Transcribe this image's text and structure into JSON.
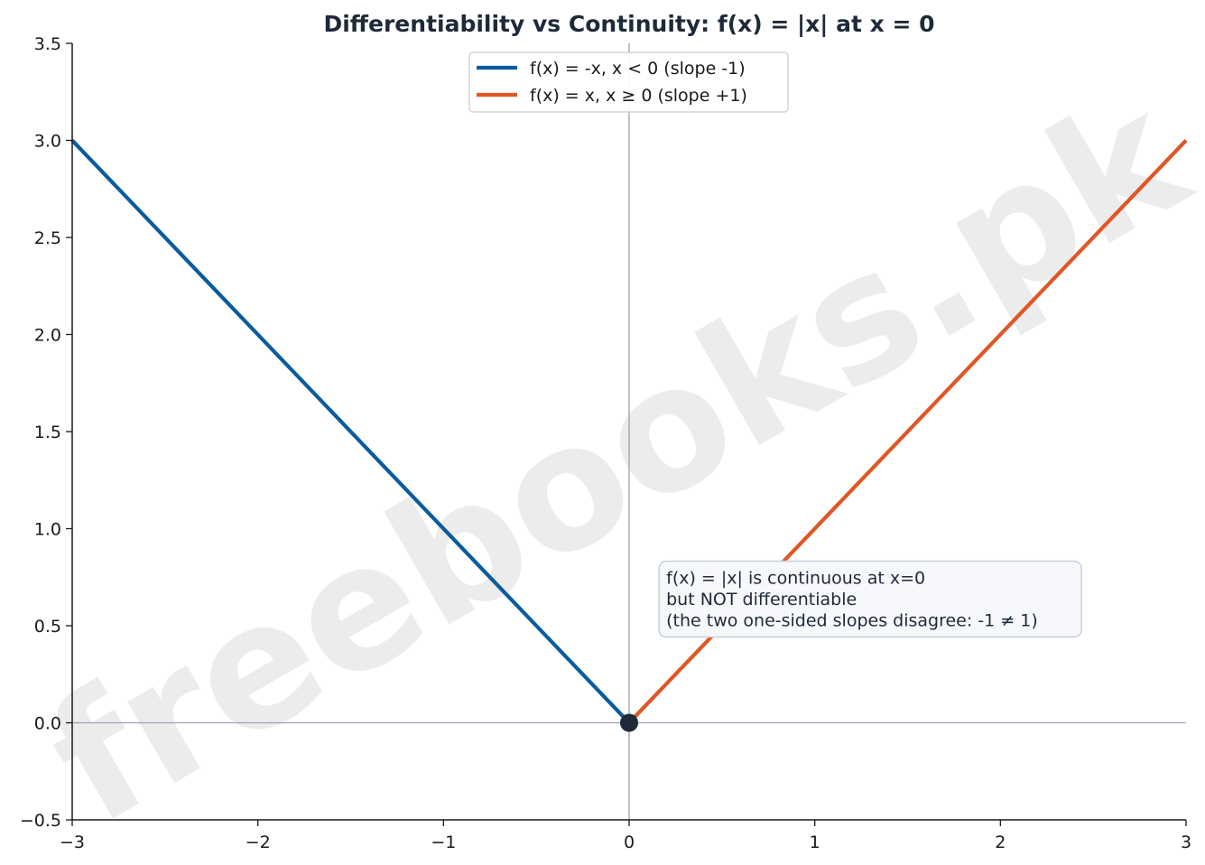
{
  "watermark": "freebooks.pk",
  "chart_data": {
    "type": "line",
    "title": "Differentiability vs Continuity:  f(x) = |x| at x = 0",
    "xlabel": "",
    "ylabel": "",
    "xlim": [
      -3,
      3
    ],
    "ylim": [
      -0.5,
      3.5
    ],
    "xticks": [
      -3,
      -2,
      -1,
      0,
      1,
      2,
      3
    ],
    "xtick_labels": [
      "−3",
      "−2",
      "−1",
      "0",
      "1",
      "2",
      "3"
    ],
    "yticks": [
      -0.5,
      0.0,
      0.5,
      1.0,
      1.5,
      2.0,
      2.5,
      3.0,
      3.5
    ],
    "ytick_labels": [
      "−0.5",
      "0.0",
      "0.5",
      "1.0",
      "1.5",
      "2.0",
      "2.5",
      "3.0",
      "3.5"
    ],
    "grid": false,
    "legend_position": "top-center",
    "series": [
      {
        "name": "f(x) = -x,  x < 0  (slope -1)",
        "color": "#0a5c9e",
        "x": [
          -3,
          0
        ],
        "y": [
          3,
          0
        ]
      },
      {
        "name": "f(x) = x,  x ≥ 0  (slope +1)",
        "color": "#e05624",
        "x": [
          0,
          3
        ],
        "y": [
          0,
          3
        ]
      }
    ],
    "reference_lines": [
      {
        "axis": "x",
        "value": 0,
        "color": "#a0a0a0"
      },
      {
        "axis": "y",
        "value": 0,
        "color": "#a0a0c0"
      }
    ],
    "point": {
      "x": 0,
      "y": 0,
      "color": "#1e2a3a"
    },
    "annotation": {
      "lines": [
        "f(x) = |x| is continuous at x=0",
        "but NOT differentiable",
        "(the two one-sided slopes disagree: -1 ≠ 1)"
      ],
      "x": 0.2,
      "y": 0.4
    }
  }
}
